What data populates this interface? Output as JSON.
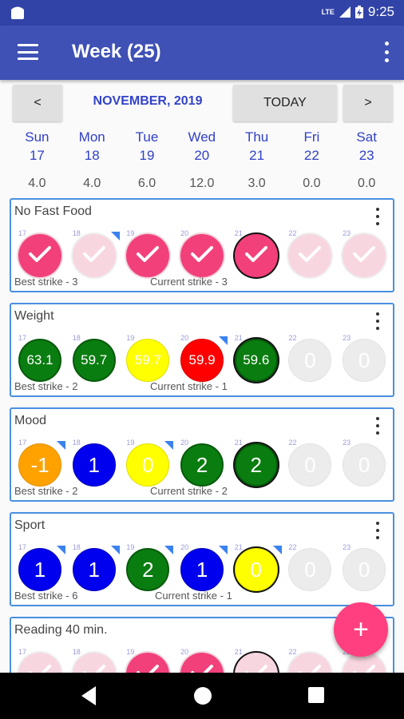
{
  "status_bar": {
    "time": "9:25",
    "network": "LTE",
    "battery": "charging"
  },
  "appbar": {
    "title": "Week (25)",
    "menu_icon": "hamburger-menu-icon",
    "overflow_icon": "more-vert-icon"
  },
  "nav": {
    "prev_label": "<",
    "month_label": "NOVEMBER, 2019",
    "today_label": "TODAY",
    "next_label": ">"
  },
  "days": [
    {
      "name": "Sun",
      "num": "17",
      "total": "4.0"
    },
    {
      "name": "Mon",
      "num": "18",
      "total": "4.0"
    },
    {
      "name": "Tue",
      "num": "19",
      "total": "6.0"
    },
    {
      "name": "Wed",
      "num": "20",
      "total": "12.0"
    },
    {
      "name": "Thu",
      "num": "21",
      "total": "3.0"
    },
    {
      "name": "Fri",
      "num": "22",
      "total": "0.0"
    },
    {
      "name": "Sat",
      "num": "23",
      "total": "0.0"
    }
  ],
  "habits": [
    {
      "title": "No Fast Food",
      "best": "Best strike - 3",
      "current": "Current strike - 3",
      "cells": [
        {
          "day": "17",
          "kind": "check",
          "style": "pink"
        },
        {
          "day": "18",
          "kind": "check",
          "style": "fade",
          "note": true
        },
        {
          "day": "19",
          "kind": "check",
          "style": "pink"
        },
        {
          "day": "20",
          "kind": "check",
          "style": "pink"
        },
        {
          "day": "21",
          "kind": "check",
          "style": "pink",
          "today": true
        },
        {
          "day": "22",
          "kind": "check",
          "style": "fade"
        },
        {
          "day": "23",
          "kind": "check",
          "style": "fade"
        }
      ]
    },
    {
      "title": "Weight",
      "best": "Best strike - 2",
      "current": "Current strike - 1",
      "cells": [
        {
          "day": "17",
          "kind": "value",
          "value": "63.1",
          "style": "green"
        },
        {
          "day": "18",
          "kind": "value",
          "value": "59.7",
          "style": "green"
        },
        {
          "day": "19",
          "kind": "value",
          "value": "59.7",
          "style": "yellow"
        },
        {
          "day": "20",
          "kind": "value",
          "value": "59.9",
          "style": "red",
          "note": true
        },
        {
          "day": "21",
          "kind": "value",
          "value": "59.6",
          "style": "green",
          "today": true
        },
        {
          "day": "22",
          "kind": "value",
          "value": "0",
          "style": "grey"
        },
        {
          "day": "23",
          "kind": "value",
          "value": "0",
          "style": "grey"
        }
      ]
    },
    {
      "title": "Mood",
      "best": "Best strike - 2",
      "current": "Current strike - 2",
      "cells": [
        {
          "day": "17",
          "kind": "value",
          "value": "-1",
          "style": "orange",
          "note": true
        },
        {
          "day": "18",
          "kind": "value",
          "value": "1",
          "style": "blue"
        },
        {
          "day": "19",
          "kind": "value",
          "value": "0",
          "style": "yellow",
          "note": true
        },
        {
          "day": "20",
          "kind": "value",
          "value": "2",
          "style": "green"
        },
        {
          "day": "21",
          "kind": "value",
          "value": "2",
          "style": "green",
          "today": true
        },
        {
          "day": "22",
          "kind": "value",
          "value": "0",
          "style": "grey"
        },
        {
          "day": "23",
          "kind": "value",
          "value": "0",
          "style": "grey"
        }
      ]
    },
    {
      "title": "Sport",
      "best": "Best strike - 6",
      "current": "Current strike - 1",
      "cells": [
        {
          "day": "17",
          "kind": "value",
          "value": "1",
          "style": "blue",
          "note": true
        },
        {
          "day": "18",
          "kind": "value",
          "value": "1",
          "style": "blue",
          "note": true
        },
        {
          "day": "19",
          "kind": "value",
          "value": "2",
          "style": "green",
          "note": true
        },
        {
          "day": "20",
          "kind": "value",
          "value": "1",
          "style": "blue",
          "note": true
        },
        {
          "day": "21",
          "kind": "value",
          "value": "0",
          "style": "yellow",
          "today": true,
          "note": true
        },
        {
          "day": "22",
          "kind": "value",
          "value": "0",
          "style": "grey"
        },
        {
          "day": "23",
          "kind": "value",
          "value": "0",
          "style": "grey"
        }
      ]
    },
    {
      "title": "Reading 40 min.",
      "best": "",
      "current": "",
      "cells": [
        {
          "day": "17",
          "kind": "check",
          "style": "fade"
        },
        {
          "day": "18",
          "kind": "check",
          "style": "fade"
        },
        {
          "day": "19",
          "kind": "check",
          "style": "pink"
        },
        {
          "day": "20",
          "kind": "check",
          "style": "pink"
        },
        {
          "day": "21",
          "kind": "check",
          "style": "fade",
          "today": true
        },
        {
          "day": "22",
          "kind": "check",
          "style": "fade"
        },
        {
          "day": "23",
          "kind": "check",
          "style": "fade"
        }
      ]
    }
  ],
  "fab": {
    "label": "+",
    "icon": "add-icon"
  },
  "colors": {
    "primary": "#3f51b5",
    "primary_dark": "#3243a7",
    "accent": "#ff3f7f",
    "day_text": "#3140c8"
  }
}
